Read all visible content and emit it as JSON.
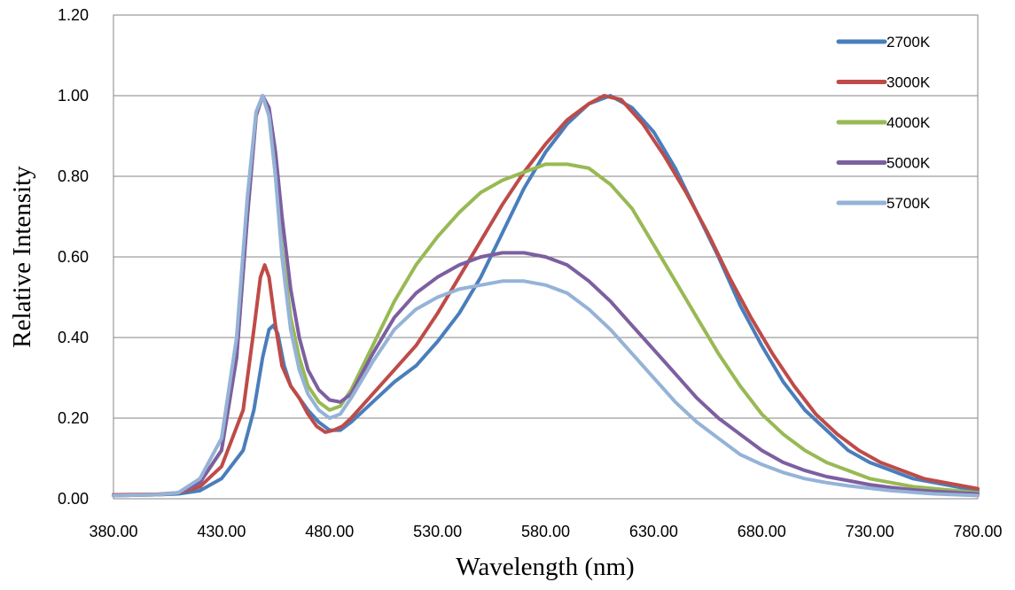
{
  "chart_data": {
    "type": "line",
    "title": "",
    "xlabel": "Wavelength (nm)",
    "ylabel": "Relative Intensity",
    "xlim": [
      380,
      780
    ],
    "ylim": [
      0,
      1.2
    ],
    "x_ticks": [
      "380.00",
      "430.00",
      "480.00",
      "530.00",
      "580.00",
      "630.00",
      "680.00",
      "730.00",
      "780.00"
    ],
    "y_ticks": [
      "0.00",
      "0.20",
      "0.40",
      "0.60",
      "0.80",
      "1.00",
      "1.20"
    ],
    "grid": "horizontal",
    "legend_position": "top-right",
    "series": [
      {
        "name": "2700K",
        "color": "#4A7EBB",
        "points": [
          [
            380,
            0.01
          ],
          [
            400,
            0.01
          ],
          [
            410,
            0.012
          ],
          [
            420,
            0.02
          ],
          [
            430,
            0.05
          ],
          [
            440,
            0.12
          ],
          [
            445,
            0.22
          ],
          [
            449,
            0.35
          ],
          [
            452,
            0.42
          ],
          [
            454,
            0.43
          ],
          [
            456,
            0.41
          ],
          [
            459,
            0.33
          ],
          [
            462,
            0.28
          ],
          [
            466,
            0.25
          ],
          [
            470,
            0.22
          ],
          [
            475,
            0.19
          ],
          [
            480,
            0.17
          ],
          [
            485,
            0.17
          ],
          [
            490,
            0.19
          ],
          [
            500,
            0.24
          ],
          [
            510,
            0.29
          ],
          [
            520,
            0.33
          ],
          [
            530,
            0.39
          ],
          [
            540,
            0.46
          ],
          [
            550,
            0.55
          ],
          [
            560,
            0.66
          ],
          [
            570,
            0.77
          ],
          [
            580,
            0.86
          ],
          [
            590,
            0.93
          ],
          [
            600,
            0.98
          ],
          [
            610,
            1.0
          ],
          [
            620,
            0.97
          ],
          [
            630,
            0.91
          ],
          [
            640,
            0.82
          ],
          [
            650,
            0.71
          ],
          [
            660,
            0.6
          ],
          [
            670,
            0.48
          ],
          [
            680,
            0.38
          ],
          [
            690,
            0.29
          ],
          [
            700,
            0.22
          ],
          [
            710,
            0.17
          ],
          [
            720,
            0.12
          ],
          [
            730,
            0.09
          ],
          [
            740,
            0.07
          ],
          [
            750,
            0.05
          ],
          [
            760,
            0.04
          ],
          [
            770,
            0.03
          ],
          [
            780,
            0.02
          ]
        ]
      },
      {
        "name": "3000K",
        "color": "#BE4B48",
        "points": [
          [
            380,
            0.01
          ],
          [
            400,
            0.011
          ],
          [
            410,
            0.015
          ],
          [
            420,
            0.03
          ],
          [
            430,
            0.08
          ],
          [
            440,
            0.22
          ],
          [
            445,
            0.42
          ],
          [
            448,
            0.55
          ],
          [
            450,
            0.58
          ],
          [
            452,
            0.55
          ],
          [
            455,
            0.43
          ],
          [
            458,
            0.33
          ],
          [
            462,
            0.28
          ],
          [
            466,
            0.25
          ],
          [
            470,
            0.21
          ],
          [
            474,
            0.18
          ],
          [
            478,
            0.165
          ],
          [
            482,
            0.17
          ],
          [
            486,
            0.18
          ],
          [
            490,
            0.2
          ],
          [
            500,
            0.26
          ],
          [
            510,
            0.32
          ],
          [
            520,
            0.38
          ],
          [
            530,
            0.46
          ],
          [
            540,
            0.55
          ],
          [
            550,
            0.64
          ],
          [
            560,
            0.73
          ],
          [
            570,
            0.81
          ],
          [
            580,
            0.88
          ],
          [
            590,
            0.94
          ],
          [
            600,
            0.98
          ],
          [
            607,
            1.0
          ],
          [
            615,
            0.99
          ],
          [
            625,
            0.93
          ],
          [
            635,
            0.85
          ],
          [
            645,
            0.76
          ],
          [
            655,
            0.66
          ],
          [
            665,
            0.55
          ],
          [
            675,
            0.45
          ],
          [
            685,
            0.36
          ],
          [
            695,
            0.28
          ],
          [
            705,
            0.21
          ],
          [
            715,
            0.16
          ],
          [
            725,
            0.12
          ],
          [
            735,
            0.09
          ],
          [
            745,
            0.07
          ],
          [
            755,
            0.05
          ],
          [
            765,
            0.04
          ],
          [
            780,
            0.025
          ]
        ]
      },
      {
        "name": "4000K",
        "color": "#98B954",
        "points": [
          [
            380,
            0.008
          ],
          [
            400,
            0.01
          ],
          [
            410,
            0.015
          ],
          [
            420,
            0.04
          ],
          [
            430,
            0.12
          ],
          [
            437,
            0.35
          ],
          [
            442,
            0.7
          ],
          [
            446,
            0.95
          ],
          [
            449,
            1.0
          ],
          [
            452,
            0.95
          ],
          [
            455,
            0.8
          ],
          [
            458,
            0.62
          ],
          [
            462,
            0.45
          ],
          [
            466,
            0.35
          ],
          [
            470,
            0.28
          ],
          [
            475,
            0.24
          ],
          [
            480,
            0.22
          ],
          [
            485,
            0.23
          ],
          [
            490,
            0.27
          ],
          [
            500,
            0.38
          ],
          [
            510,
            0.49
          ],
          [
            520,
            0.58
          ],
          [
            530,
            0.65
          ],
          [
            540,
            0.71
          ],
          [
            550,
            0.76
          ],
          [
            560,
            0.79
          ],
          [
            570,
            0.81
          ],
          [
            580,
            0.83
          ],
          [
            590,
            0.83
          ],
          [
            600,
            0.82
          ],
          [
            610,
            0.78
          ],
          [
            620,
            0.72
          ],
          [
            630,
            0.63
          ],
          [
            640,
            0.54
          ],
          [
            650,
            0.45
          ],
          [
            660,
            0.36
          ],
          [
            670,
            0.28
          ],
          [
            680,
            0.21
          ],
          [
            690,
            0.16
          ],
          [
            700,
            0.12
          ],
          [
            710,
            0.09
          ],
          [
            720,
            0.07
          ],
          [
            730,
            0.05
          ],
          [
            740,
            0.04
          ],
          [
            750,
            0.03
          ],
          [
            760,
            0.025
          ],
          [
            780,
            0.015
          ]
        ]
      },
      {
        "name": "5000K",
        "color": "#7D5FA0",
        "points": [
          [
            380,
            0.008
          ],
          [
            400,
            0.01
          ],
          [
            410,
            0.015
          ],
          [
            420,
            0.04
          ],
          [
            430,
            0.12
          ],
          [
            437,
            0.35
          ],
          [
            442,
            0.7
          ],
          [
            446,
            0.95
          ],
          [
            449,
            1.0
          ],
          [
            452,
            0.97
          ],
          [
            455,
            0.86
          ],
          [
            458,
            0.7
          ],
          [
            462,
            0.52
          ],
          [
            466,
            0.4
          ],
          [
            470,
            0.32
          ],
          [
            475,
            0.27
          ],
          [
            480,
            0.245
          ],
          [
            485,
            0.24
          ],
          [
            490,
            0.26
          ],
          [
            500,
            0.36
          ],
          [
            510,
            0.45
          ],
          [
            520,
            0.51
          ],
          [
            530,
            0.55
          ],
          [
            540,
            0.58
          ],
          [
            550,
            0.6
          ],
          [
            560,
            0.61
          ],
          [
            570,
            0.61
          ],
          [
            580,
            0.6
          ],
          [
            590,
            0.58
          ],
          [
            600,
            0.54
          ],
          [
            610,
            0.49
          ],
          [
            620,
            0.43
          ],
          [
            630,
            0.37
          ],
          [
            640,
            0.31
          ],
          [
            650,
            0.25
          ],
          [
            660,
            0.2
          ],
          [
            670,
            0.16
          ],
          [
            680,
            0.12
          ],
          [
            690,
            0.09
          ],
          [
            700,
            0.07
          ],
          [
            710,
            0.055
          ],
          [
            720,
            0.045
          ],
          [
            730,
            0.035
          ],
          [
            740,
            0.028
          ],
          [
            750,
            0.022
          ],
          [
            760,
            0.018
          ],
          [
            780,
            0.012
          ]
        ]
      },
      {
        "name": "5700K",
        "color": "#95B3D7",
        "points": [
          [
            380,
            0.008
          ],
          [
            400,
            0.01
          ],
          [
            410,
            0.015
          ],
          [
            420,
            0.05
          ],
          [
            430,
            0.15
          ],
          [
            437,
            0.4
          ],
          [
            442,
            0.75
          ],
          [
            446,
            0.96
          ],
          [
            449,
            1.0
          ],
          [
            452,
            0.95
          ],
          [
            455,
            0.8
          ],
          [
            458,
            0.6
          ],
          [
            462,
            0.42
          ],
          [
            466,
            0.32
          ],
          [
            470,
            0.26
          ],
          [
            475,
            0.22
          ],
          [
            480,
            0.2
          ],
          [
            485,
            0.21
          ],
          [
            490,
            0.25
          ],
          [
            500,
            0.34
          ],
          [
            510,
            0.42
          ],
          [
            520,
            0.47
          ],
          [
            530,
            0.5
          ],
          [
            540,
            0.52
          ],
          [
            550,
            0.53
          ],
          [
            560,
            0.54
          ],
          [
            570,
            0.54
          ],
          [
            580,
            0.53
          ],
          [
            590,
            0.51
          ],
          [
            600,
            0.47
          ],
          [
            610,
            0.42
          ],
          [
            620,
            0.36
          ],
          [
            630,
            0.3
          ],
          [
            640,
            0.24
          ],
          [
            650,
            0.19
          ],
          [
            660,
            0.15
          ],
          [
            670,
            0.11
          ],
          [
            680,
            0.085
          ],
          [
            690,
            0.065
          ],
          [
            700,
            0.05
          ],
          [
            710,
            0.04
          ],
          [
            720,
            0.032
          ],
          [
            730,
            0.026
          ],
          [
            740,
            0.02
          ],
          [
            750,
            0.016
          ],
          [
            760,
            0.012
          ],
          [
            780,
            0.008
          ]
        ]
      }
    ]
  }
}
